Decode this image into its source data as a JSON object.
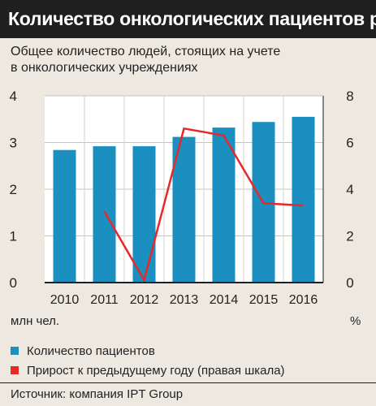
{
  "title": "Количество онкологических пациентов растет",
  "subtitle_lines": [
    "Общее количество людей, стоящих на учете",
    "в онкологических учреждениях"
  ],
  "chart_data": {
    "type": "bar",
    "categories": [
      "2010",
      "2011",
      "2012",
      "2013",
      "2014",
      "2015",
      "2016"
    ],
    "series": [
      {
        "name": "Количество пациентов",
        "type": "bar",
        "axis": "left",
        "color": "#1a8fc0",
        "values": [
          2.84,
          2.92,
          2.92,
          3.12,
          3.32,
          3.44,
          3.55
        ]
      },
      {
        "name": "Прирост к предыдущему году (правая шкала)",
        "type": "line",
        "axis": "right",
        "color": "#e62a2a",
        "values": [
          null,
          3.05,
          0.1,
          6.6,
          6.3,
          3.4,
          3.3
        ]
      }
    ],
    "y_left": {
      "ticks": [
        "0",
        "1",
        "2",
        "3",
        "4"
      ],
      "lim": [
        0,
        4
      ],
      "unit": "млн чел."
    },
    "y_right": {
      "ticks": [
        "0",
        "2",
        "4",
        "6",
        "8"
      ],
      "lim": [
        0,
        8
      ],
      "unit": "%"
    },
    "grid": true,
    "legend": "bottom"
  },
  "source": "Источник: компания IPT Group"
}
